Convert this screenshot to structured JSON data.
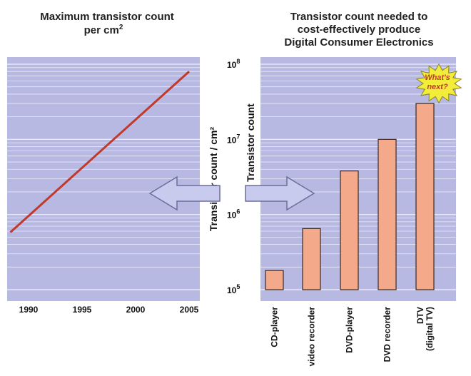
{
  "chart_data": [
    {
      "type": "line",
      "title": "Maximum transistor count",
      "title_line2": "per cm",
      "title_superscript": "2",
      "x_ticks": [
        "1990",
        "1995",
        "2000",
        "2005"
      ],
      "xlim": [
        1988,
        2006
      ],
      "ylim_log10": [
        5,
        8
      ],
      "scale": "log",
      "series": [
        {
          "x": [
            1988.3,
            2005.0
          ],
          "y": [
            580000,
            80000000
          ],
          "color": "#c0392b"
        }
      ],
      "grid": true
    },
    {
      "type": "bar",
      "title_lines": [
        "Transistor count needed to",
        "cost-effectively produce",
        "Digital Consumer Electronics"
      ],
      "categories": [
        "CD-player",
        "video recorder",
        "DVD-player",
        "DVD recorder",
        "DTV (digital TV)"
      ],
      "category_lines": [
        [
          "CD-player"
        ],
        [
          "video recorder"
        ],
        [
          "DVD-player"
        ],
        [
          "DVD recorder"
        ],
        [
          "DTV",
          "(digital TV)"
        ]
      ],
      "values": [
        180000,
        650000,
        3800000,
        10000000,
        30000000
      ],
      "y_ticks": [
        {
          "base": "10",
          "exp": "5",
          "value": 100000
        },
        {
          "base": "10",
          "exp": "6",
          "value": 1000000
        },
        {
          "base": "10",
          "exp": "7",
          "value": 10000000
        },
        {
          "base": "10",
          "exp": "8",
          "value": 100000000
        }
      ],
      "ylabel_left": "Transistor count / cm²",
      "ylabel_right": "Transistor count",
      "scale": "log",
      "grid": true,
      "annotation": {
        "line1": "What's",
        "line2": "next?"
      }
    }
  ],
  "colors": {
    "panel": "#b7b9e2",
    "grid": "#e8e9f8",
    "line": "#c0392b",
    "bar_fill": "#f3a98a",
    "bar_stroke": "#3a2a22",
    "arrow_fill": "#c9cbee",
    "arrow_stroke": "#6b6f9a",
    "burst_fill": "#f2ec3a"
  }
}
